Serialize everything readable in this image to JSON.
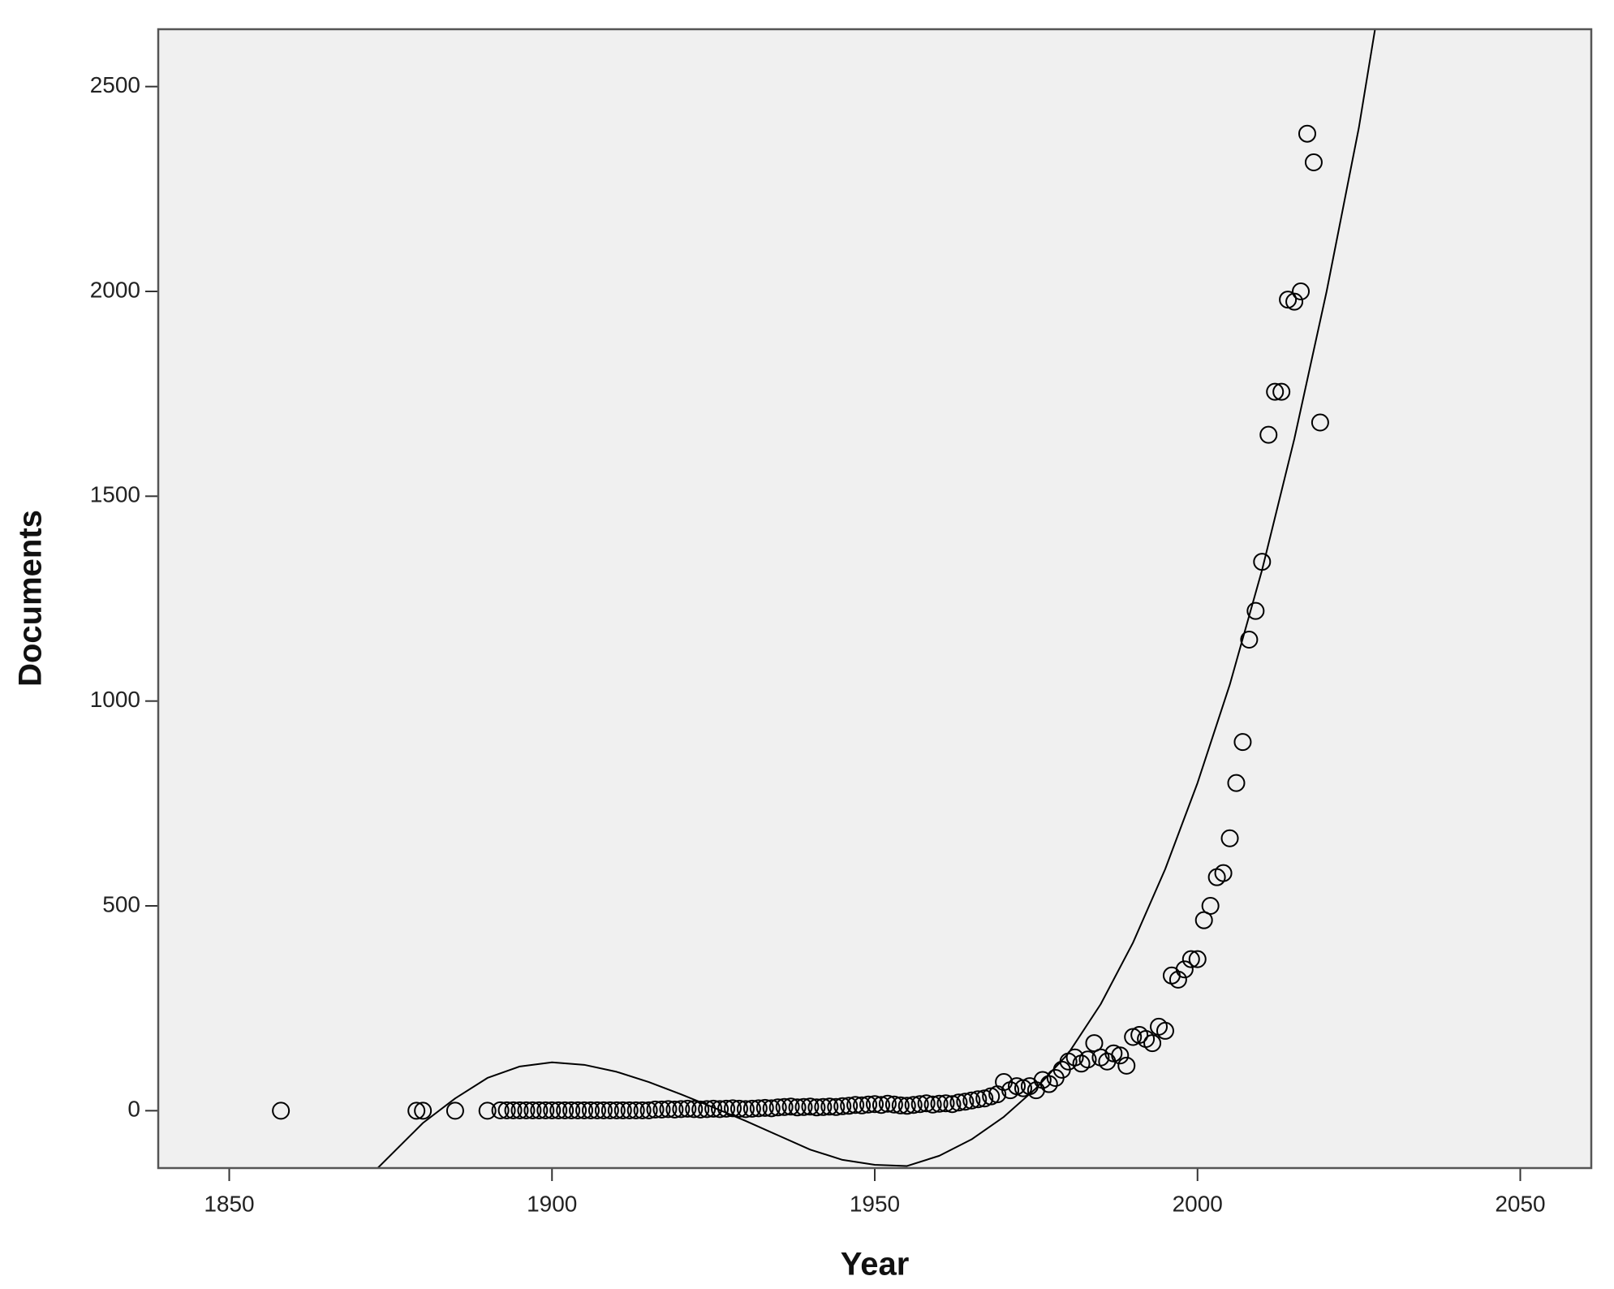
{
  "chart_data": {
    "type": "scatter",
    "x_label": "Year",
    "y_label": "Documents",
    "xlim": [
      1839,
      2061
    ],
    "ylim": [
      -140,
      2640
    ],
    "xticks": [
      1850,
      1900,
      1950,
      2000,
      2050
    ],
    "yticks": [
      0,
      500,
      1000,
      1500,
      2000,
      2500
    ],
    "color": "#000000",
    "plot_background": "#f0f0f0",
    "x": [
      1858,
      1879,
      1880,
      1885,
      1890,
      1892,
      1893,
      1894,
      1895,
      1896,
      1897,
      1898,
      1899,
      1900,
      1901,
      1902,
      1903,
      1904,
      1905,
      1906,
      1907,
      1908,
      1909,
      1910,
      1911,
      1912,
      1913,
      1914,
      1915,
      1916,
      1917,
      1918,
      1919,
      1920,
      1921,
      1922,
      1923,
      1924,
      1925,
      1926,
      1927,
      1928,
      1929,
      1930,
      1931,
      1932,
      1933,
      1934,
      1935,
      1936,
      1937,
      1938,
      1939,
      1940,
      1941,
      1942,
      1943,
      1944,
      1945,
      1946,
      1947,
      1948,
      1949,
      1950,
      1951,
      1952,
      1953,
      1954,
      1955,
      1956,
      1957,
      1958,
      1959,
      1960,
      1961,
      1962,
      1963,
      1964,
      1965,
      1966,
      1967,
      1968,
      1969,
      1970,
      1971,
      1972,
      1973,
      1974,
      1975,
      1976,
      1977,
      1978,
      1979,
      1980,
      1981,
      1982,
      1983,
      1984,
      1985,
      1986,
      1987,
      1988,
      1989,
      1990,
      1991,
      1992,
      1993,
      1994,
      1995,
      1996,
      1997,
      1998,
      1999,
      2000,
      2001,
      2002,
      2003,
      2004,
      2005,
      2006,
      2007,
      2008,
      2009,
      2010,
      2011,
      2012,
      2013,
      2014,
      2015,
      2016,
      2017,
      2018,
      2019
    ],
    "values": [
      0,
      0,
      0,
      0,
      0,
      1,
      1,
      1,
      1,
      1,
      1,
      1,
      1,
      1,
      1,
      1,
      1,
      1,
      1,
      1,
      1,
      1,
      1,
      1,
      1,
      1,
      1,
      1,
      1,
      3,
      3,
      4,
      3,
      4,
      5,
      4,
      3,
      4,
      5,
      4,
      5,
      6,
      5,
      4,
      5,
      6,
      7,
      6,
      8,
      9,
      10,
      8,
      9,
      10,
      8,
      9,
      10,
      9,
      11,
      12,
      14,
      13,
      15,
      16,
      14,
      17,
      15,
      13,
      12,
      14,
      16,
      18,
      15,
      17,
      18,
      16,
      20,
      22,
      25,
      28,
      30,
      35,
      40,
      70,
      50,
      60,
      55,
      60,
      50,
      75,
      65,
      80,
      100,
      120,
      130,
      115,
      125,
      165,
      130,
      120,
      140,
      135,
      110,
      180,
      185,
      175,
      165,
      205,
      195,
      330,
      320,
      345,
      370,
      370,
      465,
      500,
      570,
      580,
      665,
      800,
      900,
      1150,
      1220,
      1340,
      1650,
      1755,
      1755,
      1980,
      1975,
      2000,
      2385,
      2315,
      1680
    ],
    "fit": {
      "x": [
        1873,
        1880,
        1885,
        1890,
        1895,
        1900,
        1905,
        1910,
        1915,
        1920,
        1925,
        1930,
        1935,
        1940,
        1945,
        1950,
        1955,
        1960,
        1965,
        1970,
        1975,
        1980,
        1985,
        1990,
        1995,
        2000,
        2005,
        2010,
        2015,
        2020,
        2025,
        2027.5
      ],
      "values": [
        -140,
        -30,
        30,
        80,
        108,
        118,
        112,
        95,
        70,
        40,
        8,
        -25,
        -60,
        -95,
        -120,
        -132,
        -135,
        -110,
        -70,
        -15,
        55,
        140,
        260,
        410,
        590,
        800,
        1040,
        1320,
        1640,
        2000,
        2400,
        2640
      ]
    }
  }
}
